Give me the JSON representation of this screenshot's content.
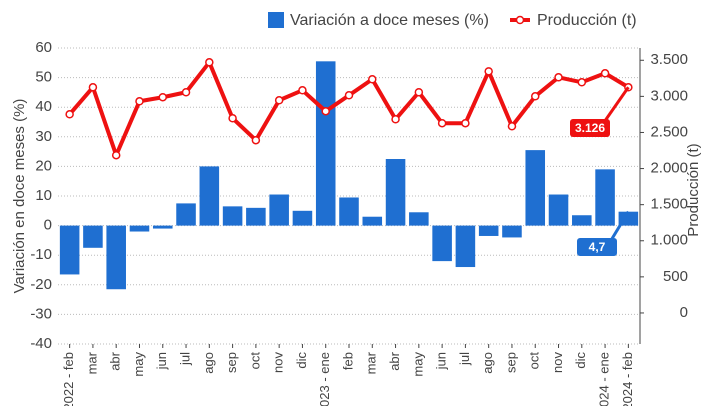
{
  "chart_data": {
    "type": "bar-line",
    "categories": [
      "2022 - feb",
      "mar",
      "abr",
      "may",
      "jun",
      "jul",
      "ago",
      "sep",
      "oct",
      "nov",
      "dic",
      "2023 - ene",
      "feb",
      "mar",
      "abr",
      "may",
      "jun",
      "jul",
      "ago",
      "sep",
      "oct",
      "nov",
      "dic",
      "2024 - ene",
      "2024 - feb"
    ],
    "series": [
      {
        "name": "Variación a doce meses (%)",
        "color": "#1f6fd1",
        "type": "bar",
        "values": [
          -16.5,
          -7.5,
          -21.5,
          -2,
          -1,
          7.5,
          20,
          6.5,
          6,
          10.5,
          5,
          55.5,
          9.5,
          3,
          22.5,
          4.5,
          -12,
          -14,
          -3.5,
          -4,
          25.5,
          10.5,
          3.5,
          19,
          4.7
        ],
        "value_labels": {
          "24": "4,7"
        }
      },
      {
        "name": "Producción (t)",
        "color": "#ee1111",
        "type": "line",
        "axis": "y2",
        "values": [
          2752,
          3126,
          2185,
          2932,
          2988,
          3057,
          3472,
          2697,
          2393,
          2946,
          3084,
          2794,
          3015,
          3237,
          2683,
          3057,
          2628,
          2628,
          3347,
          2586,
          3001,
          3264,
          3195,
          3320,
          3126
        ],
        "value_labels": {
          "24": "3.126"
        }
      }
    ],
    "ylabel": "Variación en doce meses (%)",
    "y2label": "Producción (t)",
    "ylim": [
      -40,
      60
    ],
    "yticks": [
      -40,
      -30,
      -20,
      -10,
      0,
      10,
      20,
      30,
      40,
      50,
      60
    ],
    "y2lim": [
      -430,
      3670
    ],
    "y2ticks": [
      0,
      500,
      {
        "value": 1000,
        "label": "1.000"
      },
      {
        "value": 1500,
        "label": "1.500"
      },
      {
        "value": 2000,
        "label": "2.000"
      },
      {
        "value": 2500,
        "label": "2.500"
      },
      {
        "value": 3000,
        "label": "3.000"
      },
      {
        "value": 3500,
        "label": "3.500"
      }
    ],
    "grid": true,
    "legend": "top"
  }
}
